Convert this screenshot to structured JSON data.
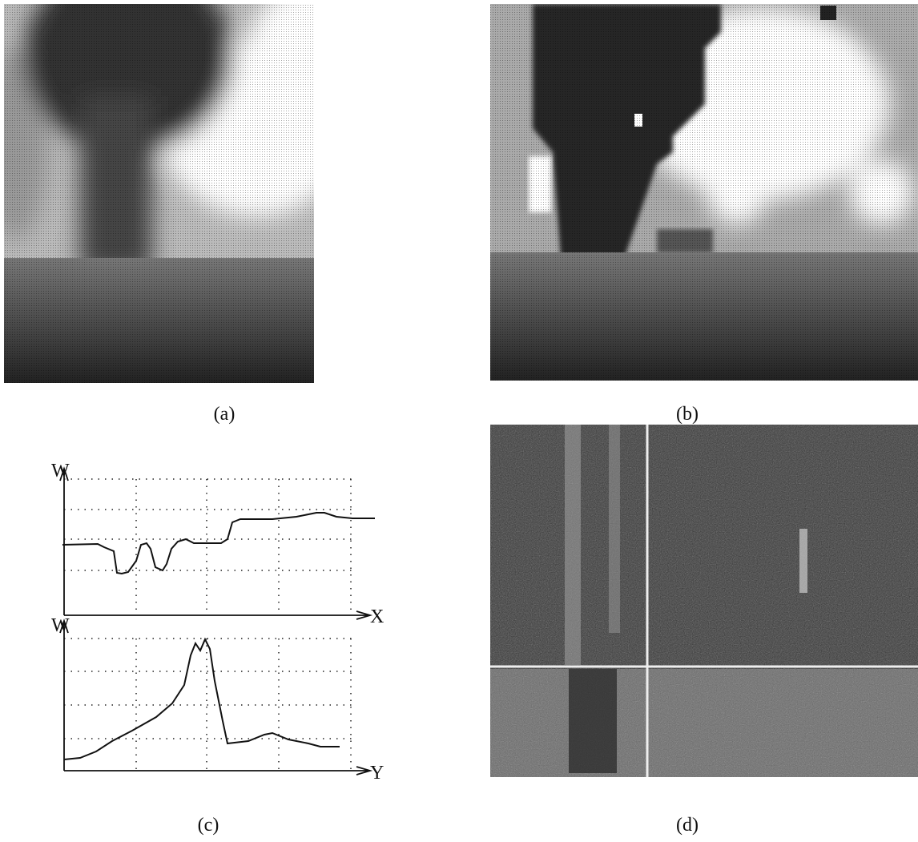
{
  "panels": [
    {
      "caption": "(a)"
    },
    {
      "caption": "(b)"
    },
    {
      "caption": "(c)",
      "top_plot": {
        "y_label": "W",
        "x_label": "X"
      },
      "bottom_plot": {
        "y_label": "W",
        "x_label": "Y"
      }
    },
    {
      "caption": "(d)"
    }
  ]
}
